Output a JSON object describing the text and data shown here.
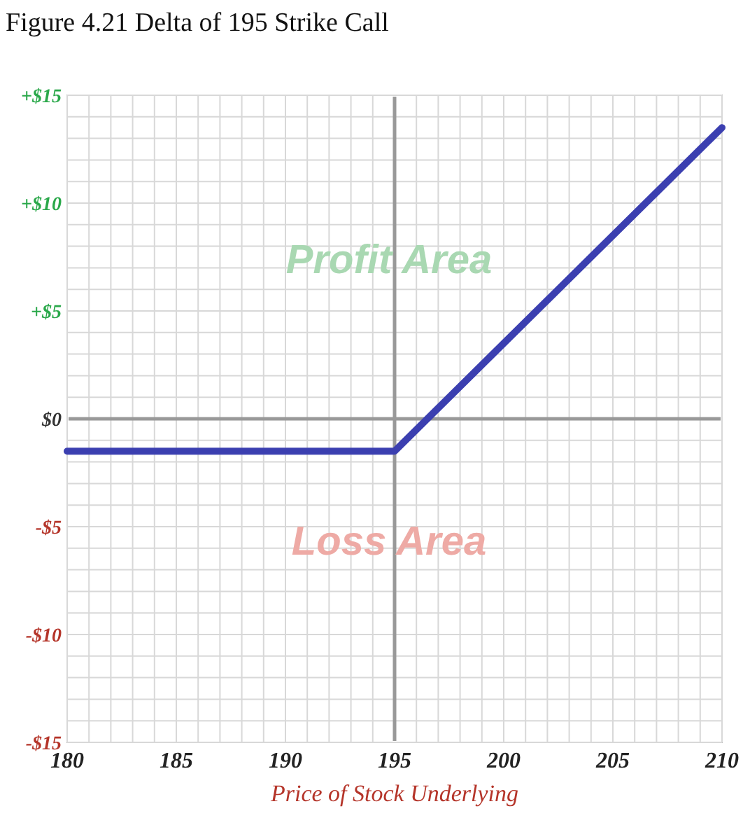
{
  "chart_data": {
    "type": "line",
    "title": "Figure 4.21 Delta of 195 Strike Call",
    "xlabel": "Price of Stock Underlying",
    "x": [
      180,
      195,
      210
    ],
    "series": [
      {
        "color": "#3b3fb0",
        "values": [
          -1.5,
          -1.5,
          13.5
        ]
      }
    ],
    "xlim": [
      180,
      210
    ],
    "xticks": [
      180,
      185,
      190,
      195,
      200,
      205,
      210
    ],
    "ylim": [
      -15,
      15
    ],
    "yticks": [
      {
        "value": -15,
        "label": "-$15"
      },
      {
        "value": -10,
        "label": "-$10"
      },
      {
        "value": -5,
        "label": "-$5"
      },
      {
        "value": 0,
        "label": "$0"
      },
      {
        "value": 5,
        "label": "+$5"
      },
      {
        "value": 10,
        "label": "+$10"
      },
      {
        "value": 15,
        "label": "+$15"
      }
    ],
    "grid": true,
    "marker": "none",
    "line_style": "solid",
    "ref_lines": [
      {
        "axis": "x",
        "value": 195,
        "color": "#999999"
      },
      {
        "axis": "y",
        "value": 0,
        "color": "#999999"
      }
    ],
    "annotations": [
      "Profit Area",
      "Loss Area"
    ]
  }
}
